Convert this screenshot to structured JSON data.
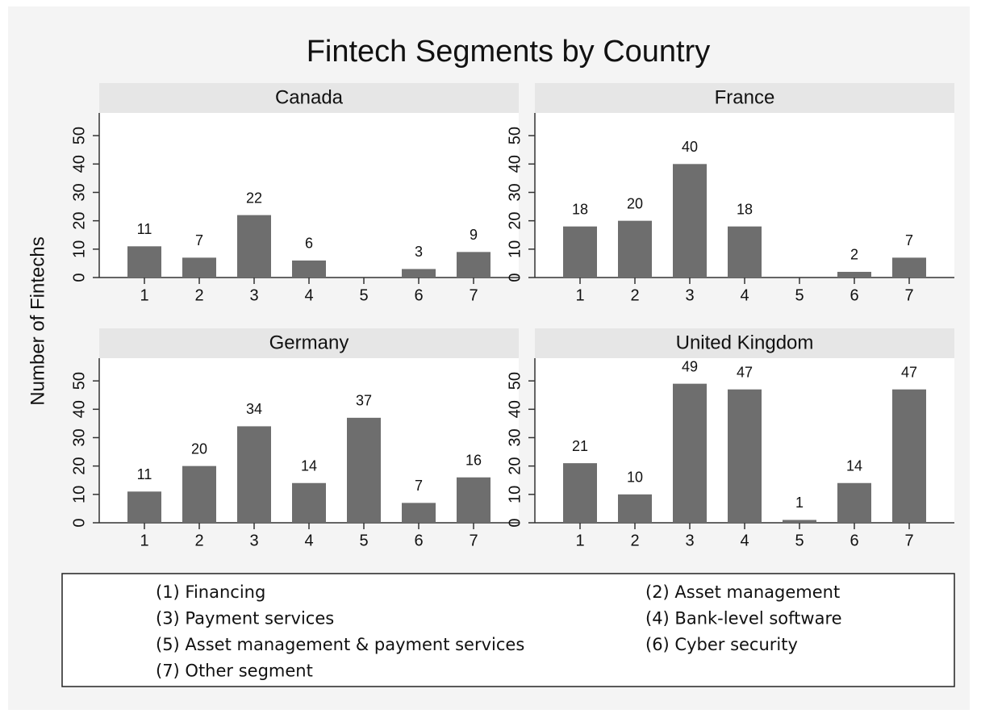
{
  "title": "Fintech Segments by Country",
  "y_label": "Number of Fintechs",
  "legend_items": [
    "(1) Financing",
    "(2) Asset management",
    "(3) Payment services",
    "(4) Bank-level software",
    "(5) Asset management & payment services",
    "(6) Cyber security",
    "(7) Other segment"
  ],
  "chart_data": [
    {
      "type": "bar",
      "title": "Canada",
      "categories": [
        "1",
        "2",
        "3",
        "4",
        "5",
        "6",
        "7"
      ],
      "values": [
        11,
        7,
        22,
        6,
        null,
        3,
        9
      ],
      "color": "#6e6e6e",
      "ylim": [
        0,
        58
      ],
      "yticks": [
        0,
        10,
        20,
        30,
        40,
        50
      ]
    },
    {
      "type": "bar",
      "title": "France",
      "categories": [
        "1",
        "2",
        "3",
        "4",
        "5",
        "6",
        "7"
      ],
      "values": [
        18,
        20,
        40,
        18,
        null,
        2,
        7
      ],
      "color": "#6e6e6e",
      "ylim": [
        0,
        58
      ],
      "yticks": [
        0,
        10,
        20,
        30,
        40,
        50
      ]
    },
    {
      "type": "bar",
      "title": "Germany",
      "categories": [
        "1",
        "2",
        "3",
        "4",
        "5",
        "6",
        "7"
      ],
      "values": [
        11,
        20,
        34,
        14,
        37,
        7,
        16
      ],
      "color": "#6e6e6e",
      "ylim": [
        0,
        58
      ],
      "yticks": [
        0,
        10,
        20,
        30,
        40,
        50
      ]
    },
    {
      "type": "bar",
      "title": "United Kingdom",
      "categories": [
        "1",
        "2",
        "3",
        "4",
        "5",
        "6",
        "7"
      ],
      "values": [
        21,
        10,
        49,
        47,
        1,
        14,
        47
      ],
      "color": "#6e6e6e",
      "ylim": [
        0,
        58
      ],
      "yticks": [
        0,
        10,
        20,
        30,
        40,
        50
      ]
    }
  ]
}
